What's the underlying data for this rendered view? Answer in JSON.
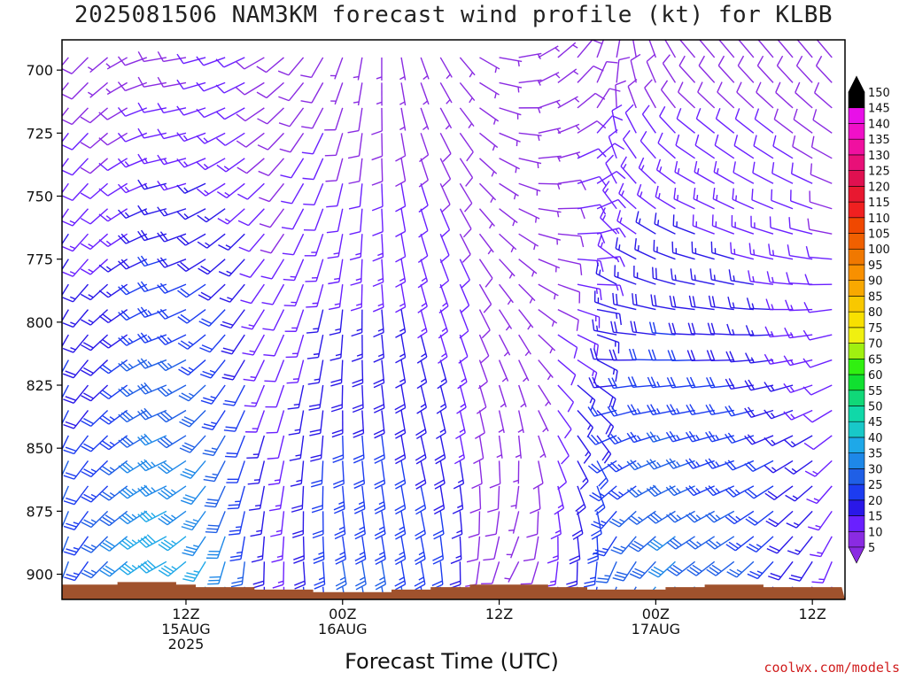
{
  "title": "2025081506 NAM3KM forecast wind profile (kt) for KLBB",
  "credit": "coolwx.com/models",
  "chart_data": {
    "type": "wind_barbs",
    "xlabel": "Forecast Time (UTC)",
    "ylabel": "",
    "y_axis": {
      "reversed": true,
      "ylim": [
        910,
        688
      ],
      "ticks": [
        700,
        725,
        750,
        775,
        800,
        825,
        850,
        875,
        900
      ]
    },
    "x_axis": {
      "range_hours": [
        -3.5,
        56.5
      ],
      "ticks": [
        {
          "hour": 6,
          "lines": [
            "12Z",
            "15AUG",
            "2025"
          ]
        },
        {
          "hour": 18,
          "lines": [
            "00Z",
            "16AUG"
          ]
        },
        {
          "hour": 30,
          "lines": [
            "12Z"
          ]
        },
        {
          "hour": 42,
          "lines": [
            "00Z",
            "17AUG"
          ]
        },
        {
          "hour": 54,
          "lines": [
            "12Z"
          ]
        }
      ]
    },
    "forecast_hours_start": -3,
    "forecast_hours_end": 56,
    "pressure_levels_hpa": [
      900,
      875,
      850,
      825,
      800,
      775,
      750,
      725,
      700
    ],
    "surface_pressure_hpa": [
      902,
      902,
      902,
      901,
      901,
      901,
      902,
      903,
      903,
      903,
      904,
      904,
      904,
      905,
      905,
      905,
      905,
      904,
      904,
      903,
      903,
      902,
      902,
      902,
      902,
      903,
      903,
      904,
      904,
      904,
      904,
      903,
      903,
      902,
      902,
      902,
      903,
      903,
      903,
      903
    ],
    "ground_color": "#a0522d",
    "colorbar": {
      "labels": [
        5,
        10,
        15,
        20,
        25,
        30,
        35,
        40,
        45,
        50,
        55,
        60,
        65,
        70,
        75,
        80,
        85,
        90,
        95,
        100,
        105,
        110,
        115,
        120,
        125,
        130,
        135,
        140,
        145,
        150
      ],
      "colors": [
        "#8a2be2",
        "#6a20ff",
        "#2a18e8",
        "#1c3cf0",
        "#1f5fe6",
        "#1e88e8",
        "#1ea8e8",
        "#18c8c8",
        "#10d8a8",
        "#10d878",
        "#10e030",
        "#30f010",
        "#a0f010",
        "#f0f010",
        "#f8e000",
        "#f8c800",
        "#f8a800",
        "#f89000",
        "#f07800",
        "#f06000",
        "#f04800",
        "#f02020",
        "#e81830",
        "#e01050",
        "#e81078",
        "#f010a0",
        "#f010c8",
        "#e810e8",
        "#000000",
        "#000000"
      ],
      "extend_low_color": "#8a2be2",
      "extend_high_color": "#000000"
    },
    "wind_profile": {
      "note": "speed in kt, direction in deg",
      "hour_step": 1.5,
      "levels_hpa": [
        905,
        895,
        885,
        875,
        865,
        855,
        845,
        835,
        825,
        815,
        805,
        795,
        785,
        775,
        765,
        755,
        745,
        735,
        725,
        715,
        705,
        695
      ],
      "speed_at_900": [
        30,
        25,
        28,
        32,
        38,
        40,
        38,
        36,
        32,
        26,
        18,
        14,
        20,
        24,
        26,
        26,
        26,
        25,
        24,
        22,
        18,
        10,
        8,
        6,
        8,
        14,
        20,
        24,
        26,
        28,
        30,
        32,
        30,
        28,
        28,
        26,
        24,
        20,
        18,
        14
      ],
      "speed_at_700": [
        8,
        8,
        6,
        6,
        8,
        8,
        8,
        10,
        10,
        10,
        8,
        8,
        8,
        8,
        6,
        6,
        6,
        6,
        6,
        6,
        6,
        6,
        6,
        6,
        6,
        6,
        8,
        8,
        8,
        8,
        8,
        8,
        8,
        8,
        8,
        8,
        8,
        8,
        8,
        8
      ],
      "dir_at_900": [
        200,
        215,
        225,
        230,
        235,
        240,
        230,
        210,
        195,
        185,
        180,
        180,
        175,
        175,
        170,
        170,
        170,
        170,
        170,
        175,
        180,
        190,
        200,
        210,
        200,
        190,
        185,
        190,
        200,
        210,
        220,
        225,
        230,
        230,
        230,
        225,
        220,
        215,
        210,
        200
      ],
      "dir_at_700": [
        220,
        225,
        230,
        240,
        250,
        260,
        260,
        255,
        250,
        245,
        240,
        230,
        220,
        210,
        200,
        190,
        180,
        170,
        160,
        150,
        140,
        120,
        100,
        80,
        60,
        50,
        40,
        20,
        10,
        350,
        340,
        330,
        320,
        320,
        320,
        320,
        320,
        320,
        320,
        320
      ]
    }
  }
}
